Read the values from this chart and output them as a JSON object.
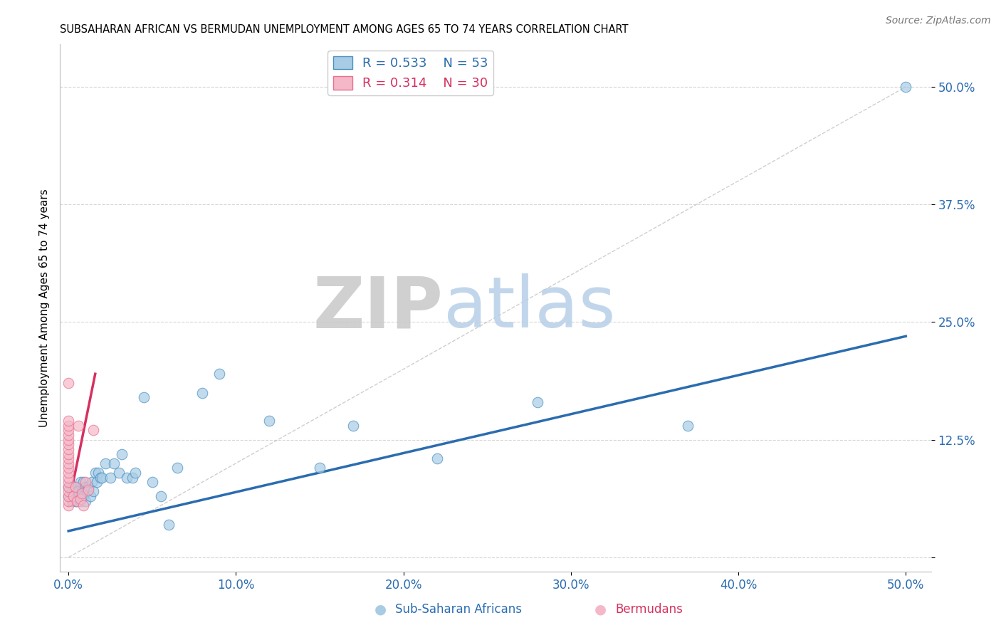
{
  "title": "SUBSAHARAN AFRICAN VS BERMUDAN UNEMPLOYMENT AMONG AGES 65 TO 74 YEARS CORRELATION CHART",
  "source": "Source: ZipAtlas.com",
  "ylabel": "Unemployment Among Ages 65 to 74 years",
  "xlim": [
    -0.005,
    0.515
  ],
  "ylim": [
    -0.015,
    0.545
  ],
  "xticks": [
    0.0,
    0.1,
    0.2,
    0.3,
    0.4,
    0.5
  ],
  "ytick_labels": [
    "",
    "12.5%",
    "25.0%",
    "37.5%",
    "50.0%"
  ],
  "ytick_vals": [
    0.0,
    0.125,
    0.25,
    0.375,
    0.5
  ],
  "xtick_labels": [
    "0.0%",
    "10.0%",
    "20.0%",
    "30.0%",
    "40.0%",
    "50.0%"
  ],
  "blue_color": "#a8cce4",
  "blue_edge_color": "#4a90c4",
  "blue_line_color": "#2b6cb0",
  "pink_color": "#f4b8c8",
  "pink_edge_color": "#e87090",
  "pink_line_color": "#d63060",
  "grid_color": "#cccccc",
  "background_color": "#ffffff",
  "watermark_zip": "ZIP",
  "watermark_atlas": "atlas",
  "legend_r_blue": "R = 0.533",
  "legend_n_blue": "N = 53",
  "legend_r_pink": "R = 0.314",
  "legend_n_pink": "N = 30",
  "blue_scatter_x": [
    0.0,
    0.0,
    0.002,
    0.002,
    0.003,
    0.003,
    0.004,
    0.004,
    0.004,
    0.005,
    0.005,
    0.006,
    0.006,
    0.007,
    0.007,
    0.008,
    0.008,
    0.009,
    0.009,
    0.01,
    0.01,
    0.011,
    0.012,
    0.013,
    0.014,
    0.015,
    0.016,
    0.017,
    0.018,
    0.019,
    0.02,
    0.022,
    0.025,
    0.027,
    0.03,
    0.032,
    0.035,
    0.038,
    0.04,
    0.045,
    0.05,
    0.055,
    0.06,
    0.065,
    0.08,
    0.09,
    0.12,
    0.15,
    0.17,
    0.22,
    0.28,
    0.37,
    0.5
  ],
  "blue_scatter_y": [
    0.065,
    0.075,
    0.06,
    0.07,
    0.065,
    0.075,
    0.06,
    0.065,
    0.075,
    0.06,
    0.07,
    0.065,
    0.07,
    0.06,
    0.08,
    0.065,
    0.07,
    0.065,
    0.08,
    0.06,
    0.075,
    0.07,
    0.075,
    0.065,
    0.08,
    0.07,
    0.09,
    0.08,
    0.09,
    0.085,
    0.085,
    0.1,
    0.085,
    0.1,
    0.09,
    0.11,
    0.085,
    0.085,
    0.09,
    0.17,
    0.08,
    0.065,
    0.035,
    0.095,
    0.175,
    0.195,
    0.145,
    0.095,
    0.14,
    0.105,
    0.165,
    0.14,
    0.5
  ],
  "pink_scatter_x": [
    0.0,
    0.0,
    0.0,
    0.0,
    0.0,
    0.0,
    0.0,
    0.0,
    0.0,
    0.0,
    0.0,
    0.0,
    0.0,
    0.0,
    0.0,
    0.0,
    0.0,
    0.0,
    0.0,
    0.0,
    0.003,
    0.004,
    0.005,
    0.006,
    0.007,
    0.008,
    0.009,
    0.01,
    0.012,
    0.015
  ],
  "pink_scatter_y": [
    0.055,
    0.06,
    0.065,
    0.07,
    0.075,
    0.08,
    0.085,
    0.09,
    0.095,
    0.1,
    0.105,
    0.11,
    0.115,
    0.12,
    0.125,
    0.13,
    0.135,
    0.14,
    0.145,
    0.185,
    0.065,
    0.075,
    0.06,
    0.14,
    0.062,
    0.068,
    0.055,
    0.08,
    0.072,
    0.135
  ],
  "blue_line_x": [
    0.0,
    0.5
  ],
  "blue_line_y": [
    0.028,
    0.235
  ],
  "pink_line_x": [
    0.0,
    0.016
  ],
  "pink_line_y": [
    0.055,
    0.195
  ],
  "diag_line_x": [
    0.0,
    0.5
  ],
  "diag_line_y": [
    0.0,
    0.5
  ]
}
